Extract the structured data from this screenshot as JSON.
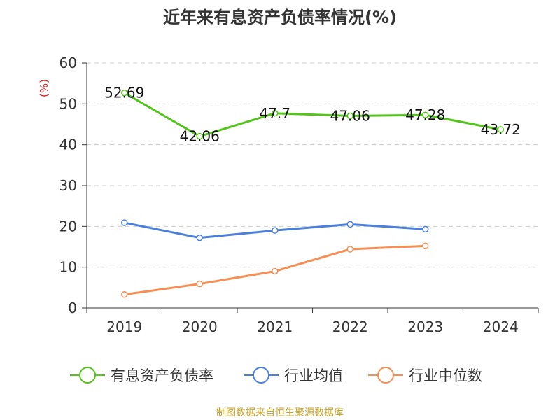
{
  "chart_data": {
    "type": "line",
    "title": "近年来有息资产负债率情况(%)",
    "ylabel": "(%)",
    "xlabel": "",
    "categories": [
      "2019",
      "2020",
      "2021",
      "2022",
      "2023",
      "2024"
    ],
    "ylim": [
      0,
      60
    ],
    "yticks": [
      "0",
      "10",
      "20",
      "30",
      "40",
      "50",
      "60"
    ],
    "grid": true,
    "legend_position": "bottom",
    "series": [
      {
        "name": "有息资产负债率",
        "color": "#52c41a",
        "values": [
          52.69,
          42.06,
          47.7,
          47.06,
          47.28,
          43.72
        ],
        "labels": [
          "52.69",
          "42.06",
          "47.7",
          "47.06",
          "47.28",
          "43.72"
        ]
      },
      {
        "name": "行业均值",
        "color": "#4a7fdb",
        "values": [
          20.9,
          17.2,
          19.0,
          20.5,
          19.3,
          null
        ]
      },
      {
        "name": "行业中位数",
        "color": "#f78f55",
        "values": [
          3.3,
          5.9,
          9.0,
          14.4,
          15.2,
          null
        ]
      }
    ]
  },
  "colors": {
    "axis": "#333333",
    "grid": "#cccccc",
    "ylabel": "#e02020",
    "source": "#c9a227"
  },
  "source": "制图数据来自恒生聚源数据库"
}
